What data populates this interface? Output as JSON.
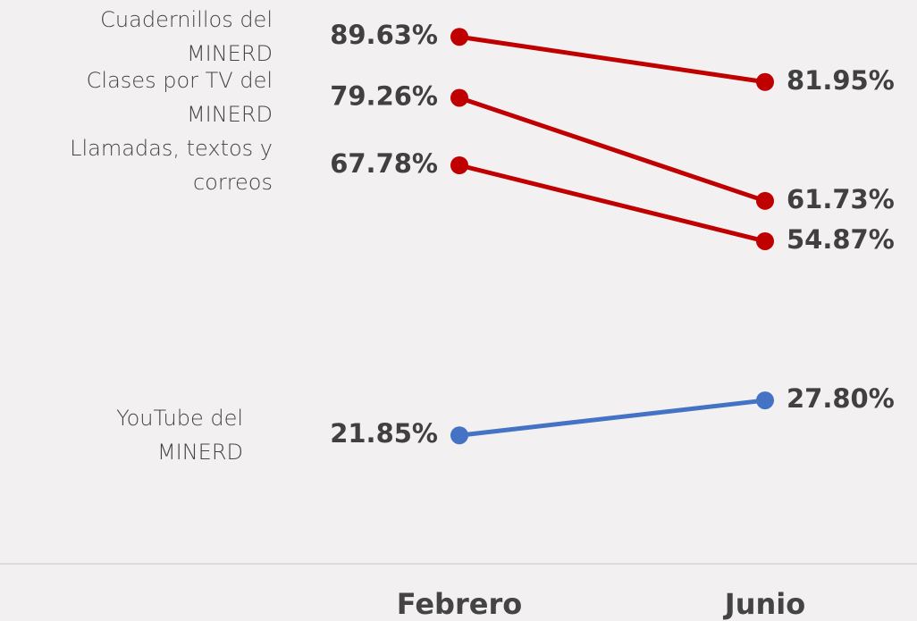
{
  "chart_data": {
    "type": "line",
    "categories": [
      "Febrero",
      "Junio"
    ],
    "series": [
      {
        "name": "Cuadernillos del MINERD",
        "color": "#c00000",
        "values": [
          89.63,
          81.95
        ],
        "value_labels": [
          "89.63%",
          "81.95%"
        ]
      },
      {
        "name": "Clases por TV del MINERD",
        "color": "#c00000",
        "values": [
          79.26,
          61.73
        ],
        "value_labels": [
          "79.26%",
          "61.73%"
        ]
      },
      {
        "name": "Llamadas, textos y correos",
        "color": "#c00000",
        "values": [
          67.78,
          54.87
        ],
        "value_labels": [
          "67.78%",
          "54.87%"
        ]
      },
      {
        "name": "YouTube del MINERD",
        "color": "#4472c4",
        "values": [
          21.85,
          27.8
        ],
        "value_labels": [
          "21.85%",
          "27.80%"
        ]
      }
    ]
  }
}
